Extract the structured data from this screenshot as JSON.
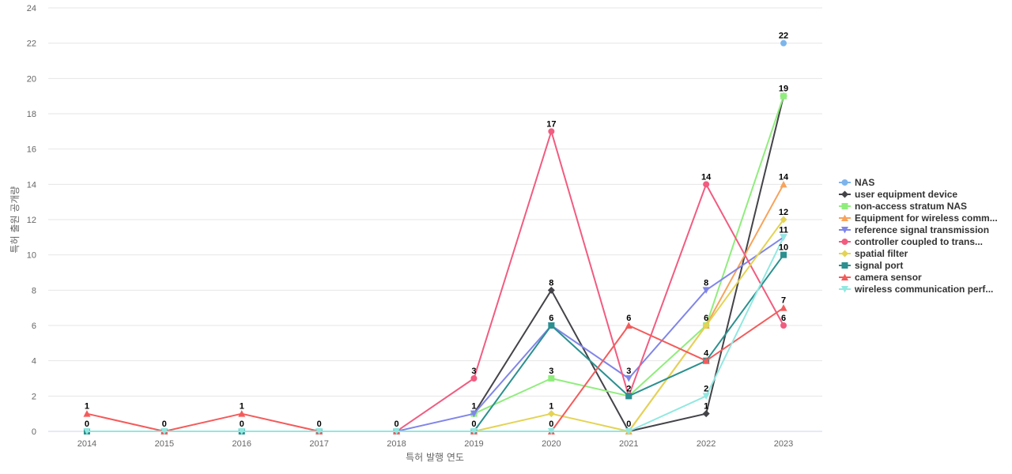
{
  "chart_data": {
    "type": "line",
    "title": "",
    "xlabel": "특허 발행 연도",
    "ylabel": "특허 출원 공개량",
    "ylim": [
      0,
      24
    ],
    "yticks": [
      0,
      2,
      4,
      6,
      8,
      10,
      12,
      14,
      16,
      18,
      20,
      22,
      24
    ],
    "grid": true,
    "legend_position": "right",
    "categories": [
      "2014",
      "2015",
      "2016",
      "2017",
      "2018",
      "2019",
      "2020",
      "2021",
      "2022",
      "2023"
    ],
    "series": [
      {
        "name": "NAS",
        "color": "#7cb5ec",
        "marker": "circle",
        "values": [
          null,
          null,
          null,
          null,
          null,
          null,
          null,
          null,
          null,
          22
        ]
      },
      {
        "name": "user equipment device",
        "color": "#434348",
        "marker": "diamond",
        "values": [
          null,
          null,
          null,
          null,
          null,
          1,
          8,
          0,
          1,
          19
        ]
      },
      {
        "name": "non-access stratum NAS",
        "color": "#90ed7d",
        "marker": "square",
        "values": [
          null,
          null,
          null,
          null,
          null,
          1,
          3,
          2,
          6,
          19
        ]
      },
      {
        "name": "Equipment for wireless comm...",
        "color": "#f7a35c",
        "marker": "triangle",
        "values": [
          null,
          null,
          null,
          null,
          null,
          null,
          null,
          0,
          6,
          14
        ]
      },
      {
        "name": "reference signal transmission",
        "color": "#8085e9",
        "marker": "triangle-down",
        "values": [
          null,
          null,
          null,
          null,
          0,
          1,
          6,
          3,
          8,
          11
        ]
      },
      {
        "name": "controller coupled to trans...",
        "color": "#f15c80",
        "marker": "circle",
        "values": [
          null,
          null,
          null,
          null,
          0,
          3,
          17,
          2,
          14,
          6
        ]
      },
      {
        "name": "spatial filter",
        "color": "#e4d354",
        "marker": "diamond",
        "values": [
          null,
          null,
          null,
          null,
          null,
          0,
          1,
          0,
          6,
          12
        ]
      },
      {
        "name": "signal port",
        "color": "#2b908f",
        "marker": "square",
        "values": [
          0,
          0,
          0,
          0,
          0,
          0,
          6,
          2,
          4,
          10
        ]
      },
      {
        "name": "camera sensor",
        "color": "#f45b5b",
        "marker": "triangle",
        "values": [
          1,
          0,
          1,
          0,
          0,
          0,
          0,
          6,
          4,
          7
        ]
      },
      {
        "name": "wireless communication perf...",
        "color": "#91e8e1",
        "marker": "triangle-down",
        "values": [
          0,
          0,
          0,
          0,
          0,
          0,
          0,
          0,
          2,
          11
        ]
      }
    ],
    "data_labels": [
      {
        "category": "2014",
        "label": "1"
      },
      {
        "category": "2014",
        "label": "0"
      },
      {
        "category": "2015",
        "label": "0"
      },
      {
        "category": "2016",
        "label": "1"
      },
      {
        "category": "2016",
        "label": "0"
      },
      {
        "category": "2017",
        "label": "0"
      },
      {
        "category": "2018",
        "label": "0"
      },
      {
        "category": "2019",
        "label": "3"
      },
      {
        "category": "2019",
        "label": "1"
      },
      {
        "category": "2019",
        "label": "0"
      },
      {
        "category": "2020",
        "label": "17"
      },
      {
        "category": "2020",
        "label": "8"
      },
      {
        "category": "2020",
        "label": "6"
      },
      {
        "category": "2020",
        "label": "3"
      },
      {
        "category": "2020",
        "label": "1"
      },
      {
        "category": "2020",
        "label": "0"
      },
      {
        "category": "2021",
        "label": "6"
      },
      {
        "category": "2021",
        "label": "3"
      },
      {
        "category": "2021",
        "label": "2"
      },
      {
        "category": "2021",
        "label": "0"
      },
      {
        "category": "2022",
        "label": "14"
      },
      {
        "category": "2022",
        "label": "8"
      },
      {
        "category": "2022",
        "label": "6"
      },
      {
        "category": "2022",
        "label": "4"
      },
      {
        "category": "2022",
        "label": "2"
      },
      {
        "category": "2022",
        "label": "1"
      },
      {
        "category": "2023",
        "label": "22"
      },
      {
        "category": "2023",
        "label": "19"
      },
      {
        "category": "2023",
        "label": "14"
      },
      {
        "category": "2023",
        "label": "12"
      },
      {
        "category": "2023",
        "label": "11"
      },
      {
        "category": "2023",
        "label": "10"
      },
      {
        "category": "2023",
        "label": "7"
      },
      {
        "category": "2023",
        "label": "6"
      }
    ]
  }
}
